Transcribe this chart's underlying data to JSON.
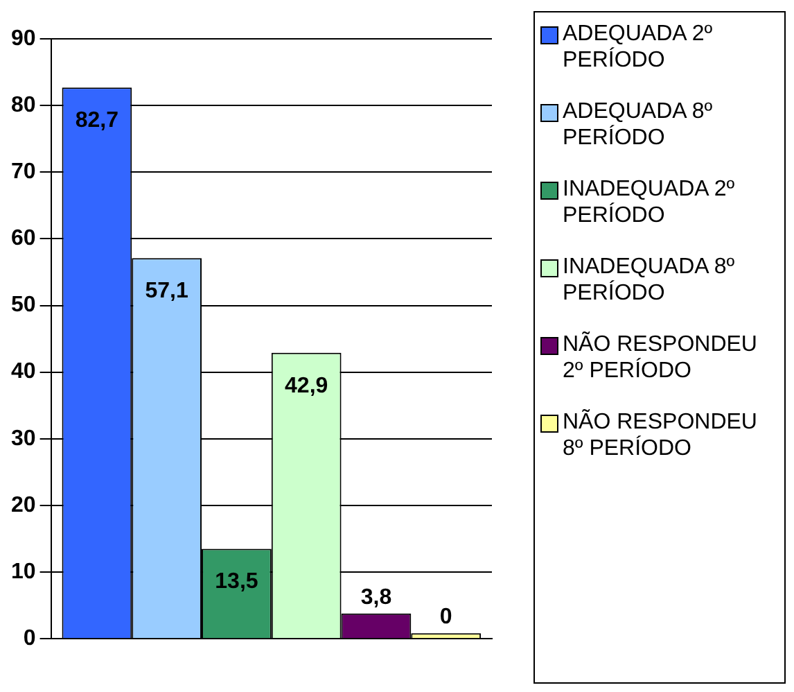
{
  "chart_data": {
    "type": "bar",
    "categories": [
      null
    ],
    "series": [
      {
        "name": "ADEQUADA 2º PERÍODO",
        "color": "#3366ff",
        "values": [
          82.7
        ],
        "value_labels": [
          "82,7"
        ]
      },
      {
        "name": "ADEQUADA 8º PERÍODO",
        "color": "#99ccff",
        "values": [
          57.1
        ],
        "value_labels": [
          "57,1"
        ]
      },
      {
        "name": "INADEQUADA 2º PERÍODO",
        "color": "#339966",
        "values": [
          13.5
        ],
        "value_labels": [
          "13,5"
        ]
      },
      {
        "name": "INADEQUADA 8º PERÍODO",
        "color": "#ccffcc",
        "values": [
          42.9
        ],
        "value_labels": [
          "42,9"
        ]
      },
      {
        "name": "NÃO RESPONDEU 2º PERÍODO",
        "color": "#660066",
        "values": [
          3.8
        ],
        "value_labels": [
          "3,8"
        ]
      },
      {
        "name": "NÃO RESPONDEU 8º PERÍODO",
        "color": "#ffff99",
        "values": [
          0
        ],
        "value_labels": [
          "0"
        ]
      }
    ],
    "ylim": [
      0,
      90
    ],
    "yticks": [
      0,
      10,
      20,
      30,
      40,
      50,
      60,
      70,
      80,
      90
    ],
    "grid": "y",
    "legend": "right"
  }
}
